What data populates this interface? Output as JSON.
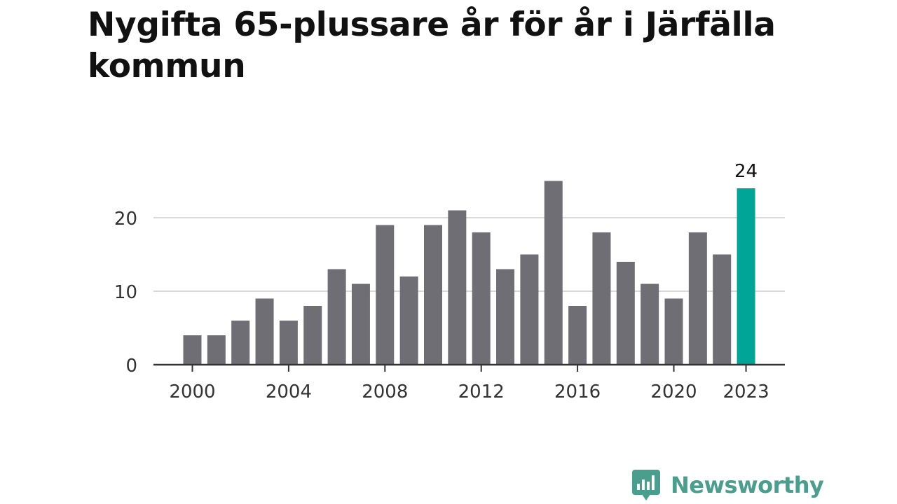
{
  "title": "Nygifta 65-plussare år för år i Järfälla kommun",
  "brand": {
    "name": "Newsworthy",
    "color": "#4a9e8e"
  },
  "colors": {
    "bar": "#6f6e75",
    "highlight": "#00a597",
    "grid": "#d9d9d9",
    "axis": "#333333",
    "text": "#333333"
  },
  "chart_data": {
    "type": "bar",
    "title": "Nygifta 65-plussare år för år i Järfälla kommun",
    "xlabel": "",
    "ylabel": "",
    "categories": [
      2000,
      2001,
      2002,
      2003,
      2004,
      2005,
      2006,
      2007,
      2008,
      2009,
      2010,
      2011,
      2012,
      2013,
      2014,
      2015,
      2016,
      2017,
      2018,
      2019,
      2020,
      2021,
      2022,
      2023
    ],
    "values": [
      4,
      4,
      6,
      9,
      6,
      8,
      13,
      11,
      19,
      12,
      19,
      21,
      18,
      13,
      15,
      25,
      8,
      18,
      14,
      11,
      9,
      18,
      15,
      24
    ],
    "highlight": 2023,
    "highlight_label": "24",
    "ylim": [
      0,
      25
    ],
    "yticks": [
      0,
      10,
      20
    ],
    "xticks": [
      2000,
      2004,
      2008,
      2012,
      2016,
      2020,
      2023
    ],
    "grid": true
  }
}
